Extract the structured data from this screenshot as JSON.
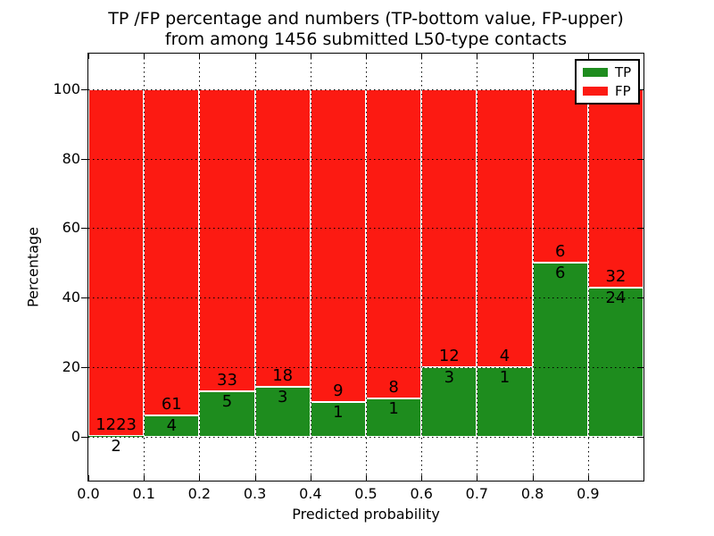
{
  "figure": {
    "title_line1": "TP /FP percentage and numbers (TP-bottom value, FP-upper)",
    "title_line2": "from among 1456 submitted L50-type contacts"
  },
  "chart_data": {
    "type": "bar",
    "stacked": true,
    "normalized_to_percent": true,
    "title": "TP /FP percentage and numbers (TP-bottom value, FP-upper) from among 1456 submitted L50-type contacts",
    "xlabel": "Predicted probability",
    "ylabel": "Percentage",
    "xlim": [
      0.0,
      1.0
    ],
    "ylim": [
      -12.6,
      110.2
    ],
    "xtick_labels": [
      "0.0",
      "0.1",
      "0.2",
      "0.3",
      "0.4",
      "0.5",
      "0.6",
      "0.7",
      "0.8",
      "0.9"
    ],
    "xtick_values": [
      0.0,
      0.1,
      0.2,
      0.3,
      0.4,
      0.5,
      0.6,
      0.7,
      0.8,
      0.9
    ],
    "ytick_labels": [
      "0",
      "20",
      "40",
      "60",
      "80",
      "100"
    ],
    "ytick_values": [
      0,
      20,
      40,
      60,
      80,
      100
    ],
    "grid": true,
    "grid_style": "dotted",
    "total_contacts": 1456,
    "legend": {
      "position": "upper right",
      "entries": [
        {
          "label": "TP",
          "color": "#1e8c1e"
        },
        {
          "label": "FP",
          "color": "#fc1a12"
        }
      ]
    },
    "colors": {
      "tp": "#1e8c1e",
      "fp": "#fc1a12",
      "bar_edge": "#ffffff"
    },
    "bins": [
      {
        "x_start": 0.0,
        "x_end": 0.1,
        "tp": 2,
        "fp": 1223,
        "tp_percent": 0.16,
        "fp_percent": 99.84
      },
      {
        "x_start": 0.1,
        "x_end": 0.2,
        "tp": 4,
        "fp": 61,
        "tp_percent": 6.15,
        "fp_percent": 93.85
      },
      {
        "x_start": 0.2,
        "x_end": 0.3,
        "tp": 5,
        "fp": 33,
        "tp_percent": 13.16,
        "fp_percent": 86.84
      },
      {
        "x_start": 0.3,
        "x_end": 0.4,
        "tp": 3,
        "fp": 18,
        "tp_percent": 14.29,
        "fp_percent": 85.71
      },
      {
        "x_start": 0.4,
        "x_end": 0.5,
        "tp": 1,
        "fp": 9,
        "tp_percent": 10.0,
        "fp_percent": 90.0
      },
      {
        "x_start": 0.5,
        "x_end": 0.6,
        "tp": 1,
        "fp": 8,
        "tp_percent": 11.11,
        "fp_percent": 88.89
      },
      {
        "x_start": 0.6,
        "x_end": 0.7,
        "tp": 3,
        "fp": 12,
        "tp_percent": 20.0,
        "fp_percent": 80.0
      },
      {
        "x_start": 0.7,
        "x_end": 0.8,
        "tp": 1,
        "fp": 4,
        "tp_percent": 20.0,
        "fp_percent": 80.0
      },
      {
        "x_start": 0.8,
        "x_end": 0.9,
        "tp": 6,
        "fp": 6,
        "tp_percent": 50.0,
        "fp_percent": 50.0
      },
      {
        "x_start": 0.9,
        "x_end": 1.0,
        "tp": 24,
        "fp": 32,
        "tp_percent": 42.86,
        "fp_percent": 57.14
      }
    ]
  }
}
